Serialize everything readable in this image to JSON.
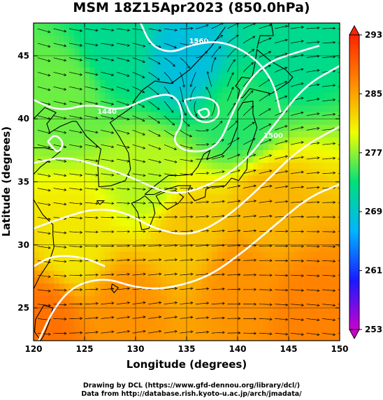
{
  "title": "MSM 18Z15Apr2023 (850.0hPa)",
  "credits": {
    "line1": "Drawing by DCL (https://www.gfd-dennou.org/library/dcl/)",
    "line2": "Data from http://database.rish.kyoto-u.ac.jp/arch/jmadata/"
  },
  "chart_data": {
    "type": "heatmap",
    "title": "MSM 18Z15Apr2023 (850.0hPa)",
    "xlabel": "Longitude (degrees)",
    "ylabel": "Latitude  (degrees)",
    "xlim": [
      120,
      150
    ],
    "ylim": [
      22.4,
      47.6
    ],
    "xticks": [
      120,
      125,
      130,
      135,
      140,
      145,
      150
    ],
    "yticks": [
      25,
      30,
      35,
      40,
      45
    ],
    "grid": true,
    "colorbar": {
      "min": 253,
      "max": 293,
      "ticks": [
        253,
        261,
        269,
        277,
        285,
        293
      ],
      "colors": [
        "#cc00cc",
        "#1a1aff",
        "#00b4ff",
        "#00e07a",
        "#f0ff00",
        "#ff8c00",
        "#ff2400"
      ]
    },
    "temperature_anchors_K": [
      {
        "lon": 128,
        "lat": 46,
        "value": 272
      },
      {
        "lon": 135,
        "lat": 45,
        "value": 268
      },
      {
        "lon": 145,
        "lat": 46,
        "value": 272
      },
      {
        "lon": 140,
        "lat": 40,
        "value": 274
      },
      {
        "lon": 123,
        "lat": 42,
        "value": 276
      },
      {
        "lon": 131,
        "lat": 35,
        "value": 278
      },
      {
        "lon": 124,
        "lat": 30,
        "value": 281
      },
      {
        "lon": 135,
        "lat": 31,
        "value": 283
      },
      {
        "lon": 143,
        "lat": 33,
        "value": 284
      },
      {
        "lon": 129,
        "lat": 25,
        "value": 286
      },
      {
        "lon": 140,
        "lat": 27,
        "value": 286
      },
      {
        "lon": 147,
        "lat": 25,
        "value": 287
      },
      {
        "lon": 121,
        "lat": 24,
        "value": 288
      }
    ],
    "contour_labels": [
      "1560",
      "1440",
      "1500"
    ],
    "low_center": {
      "lon": 136.5,
      "lat": 40.3
    }
  }
}
